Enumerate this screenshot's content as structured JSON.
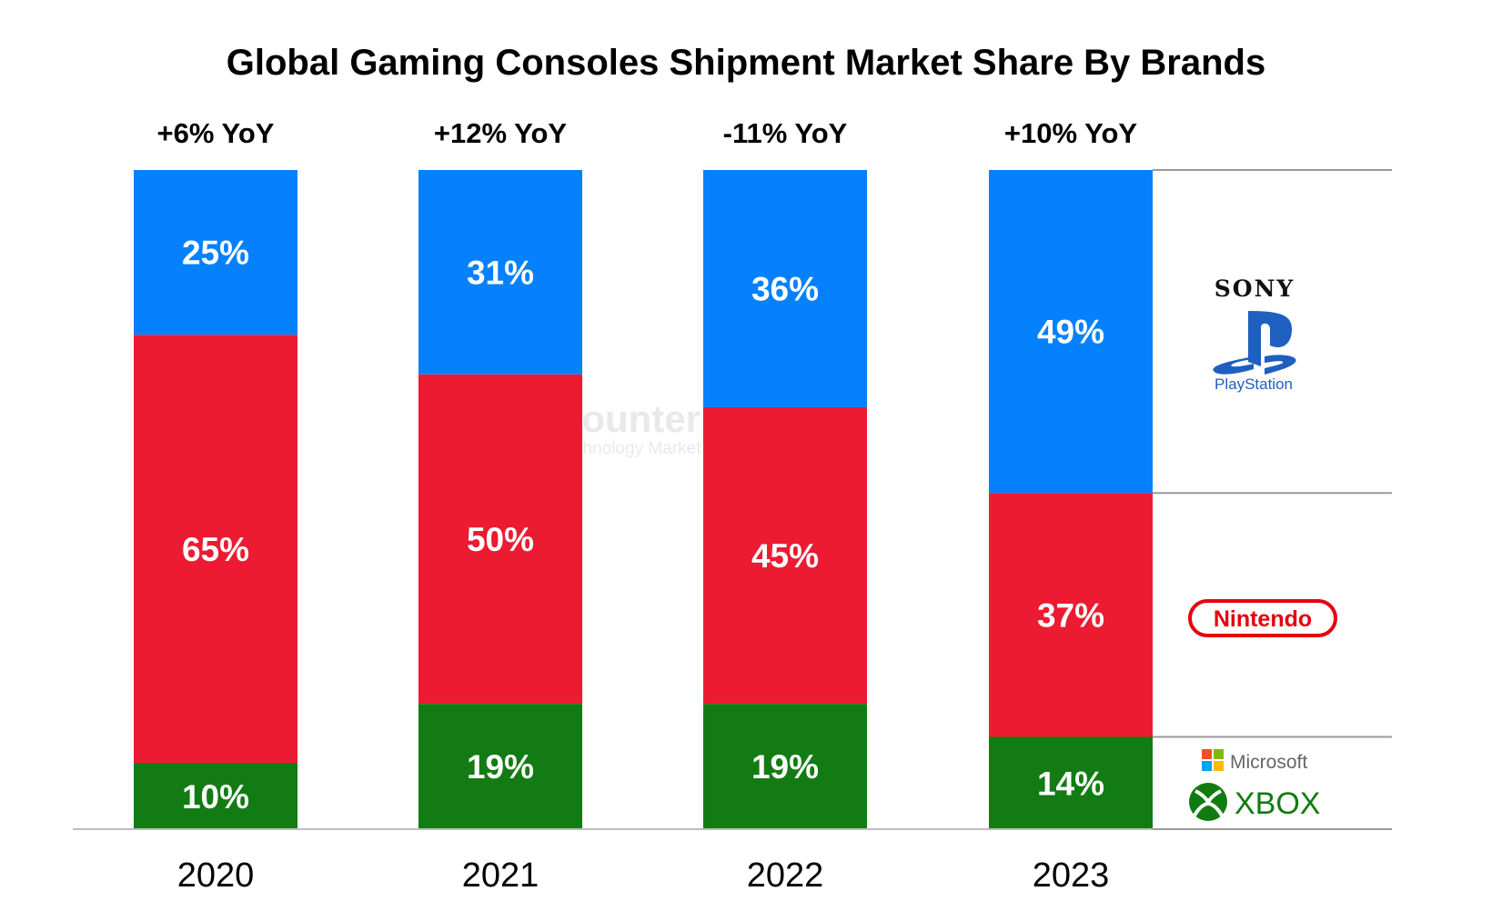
{
  "chart_data": {
    "type": "bar",
    "stacked": true,
    "title": "Global Gaming Consoles Shipment Market Share By Brands",
    "categories": [
      "2020",
      "2021",
      "2022",
      "2023"
    ],
    "yoy_labels": [
      "+6% YoY",
      "+12% YoY",
      "-11% YoY",
      "+10% YoY"
    ],
    "series": [
      {
        "name": "Sony PlayStation",
        "color": "#0681fe",
        "values": [
          25,
          31,
          36,
          49
        ],
        "labels": [
          "25%",
          "31%",
          "36%",
          "49%"
        ]
      },
      {
        "name": "Nintendo",
        "color": "#ec1b31",
        "values": [
          65,
          50,
          45,
          37
        ],
        "labels": [
          "65%",
          "50%",
          "45%",
          "37%"
        ]
      },
      {
        "name": "Microsoft Xbox",
        "color": "#137b13",
        "values": [
          10,
          19,
          19,
          14
        ],
        "labels": [
          "10%",
          "19%",
          "19%",
          "14%"
        ]
      }
    ],
    "ylim": [
      0,
      100
    ],
    "unit": "%",
    "legend": "right",
    "grid": false
  },
  "legend_logos": {
    "sony": {
      "wordmark": "SONY",
      "sub": "PlayStation",
      "icon": "playstation-logo-icon"
    },
    "nintendo": {
      "wordmark": "Nintendo",
      "icon": "nintendo-logo-icon"
    },
    "microsoft": {
      "wordmark": "Microsoft",
      "sub": "XBOX",
      "icon": "xbox-logo-icon"
    }
  },
  "watermark": {
    "brand": "Counterpoint",
    "tagline": "Technology Market Research",
    "icon": "counterpoint-logo-icon"
  }
}
